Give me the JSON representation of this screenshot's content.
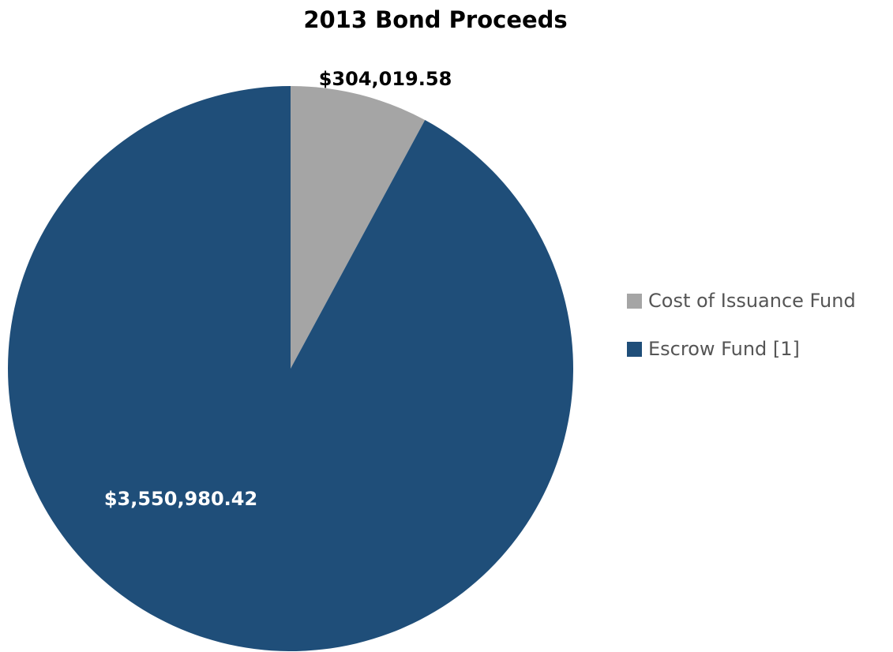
{
  "chart_data": {
    "type": "pie",
    "title": "2013 Bond Proceeds",
    "slices": [
      {
        "name": "Cost of Issuance Fund",
        "value": 304019.58,
        "label": "$304,019.58",
        "color": "#a5a5a5",
        "label_color": "#000000"
      },
      {
        "name": "Escrow Fund [1]",
        "value": 3550980.42,
        "label": "$3,550,980.42",
        "color": "#1f4e79",
        "label_color": "#ffffff"
      }
    ],
    "start_angle_deg": 0,
    "direction": "clockwise",
    "legend": {
      "position": "right"
    }
  }
}
